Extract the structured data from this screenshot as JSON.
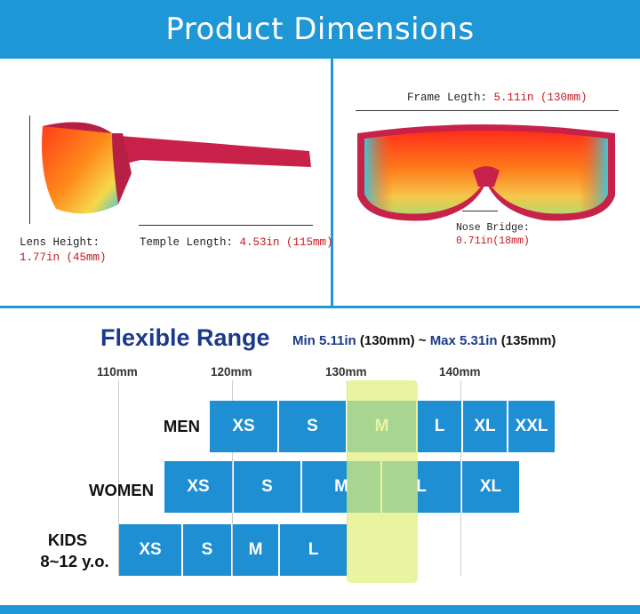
{
  "header": {
    "title": "Product Dimensions"
  },
  "side_view": {
    "lens_height_label": "Lens Height:",
    "lens_height_value": "1.77in (45mm)",
    "temple_length_label": "Temple Length:",
    "temple_length_value": "4.53in (115mm)"
  },
  "front_view": {
    "frame_length_label": "Frame Legth:",
    "frame_length_value": "5.11in (130mm)",
    "nose_bridge_label": "Nose Bridge:",
    "nose_bridge_value": "0.71in(18mm)"
  },
  "range": {
    "title": "Flexible Range",
    "min_text": "Min 5.11in",
    "min_mm": "(130mm)",
    "separator": "~",
    "max_text": "Max 5.31in",
    "max_mm": "(135mm)"
  },
  "scale": [
    "110mm",
    "120mm",
    "130mm",
    "140mm"
  ],
  "rows": {
    "men": {
      "label": "MEN",
      "sizes": [
        "XS",
        "S",
        "M",
        "L",
        "XL",
        "XXL"
      ]
    },
    "women": {
      "label": "WOMEN",
      "sizes": [
        "XS",
        "S",
        "M",
        "L",
        "XL"
      ]
    },
    "kids": {
      "label_line1": "KIDS",
      "label_line2": "8~12 y.o.",
      "sizes": [
        "XS",
        "S",
        "M",
        "L"
      ]
    }
  },
  "colors": {
    "brand_blue": "#1e97d6",
    "size_blue": "#1f8fd3",
    "highlight": "#dff07a",
    "title_navy": "#1b3a87",
    "value_red": "#c8161d",
    "frame_red": "#c8224a"
  }
}
